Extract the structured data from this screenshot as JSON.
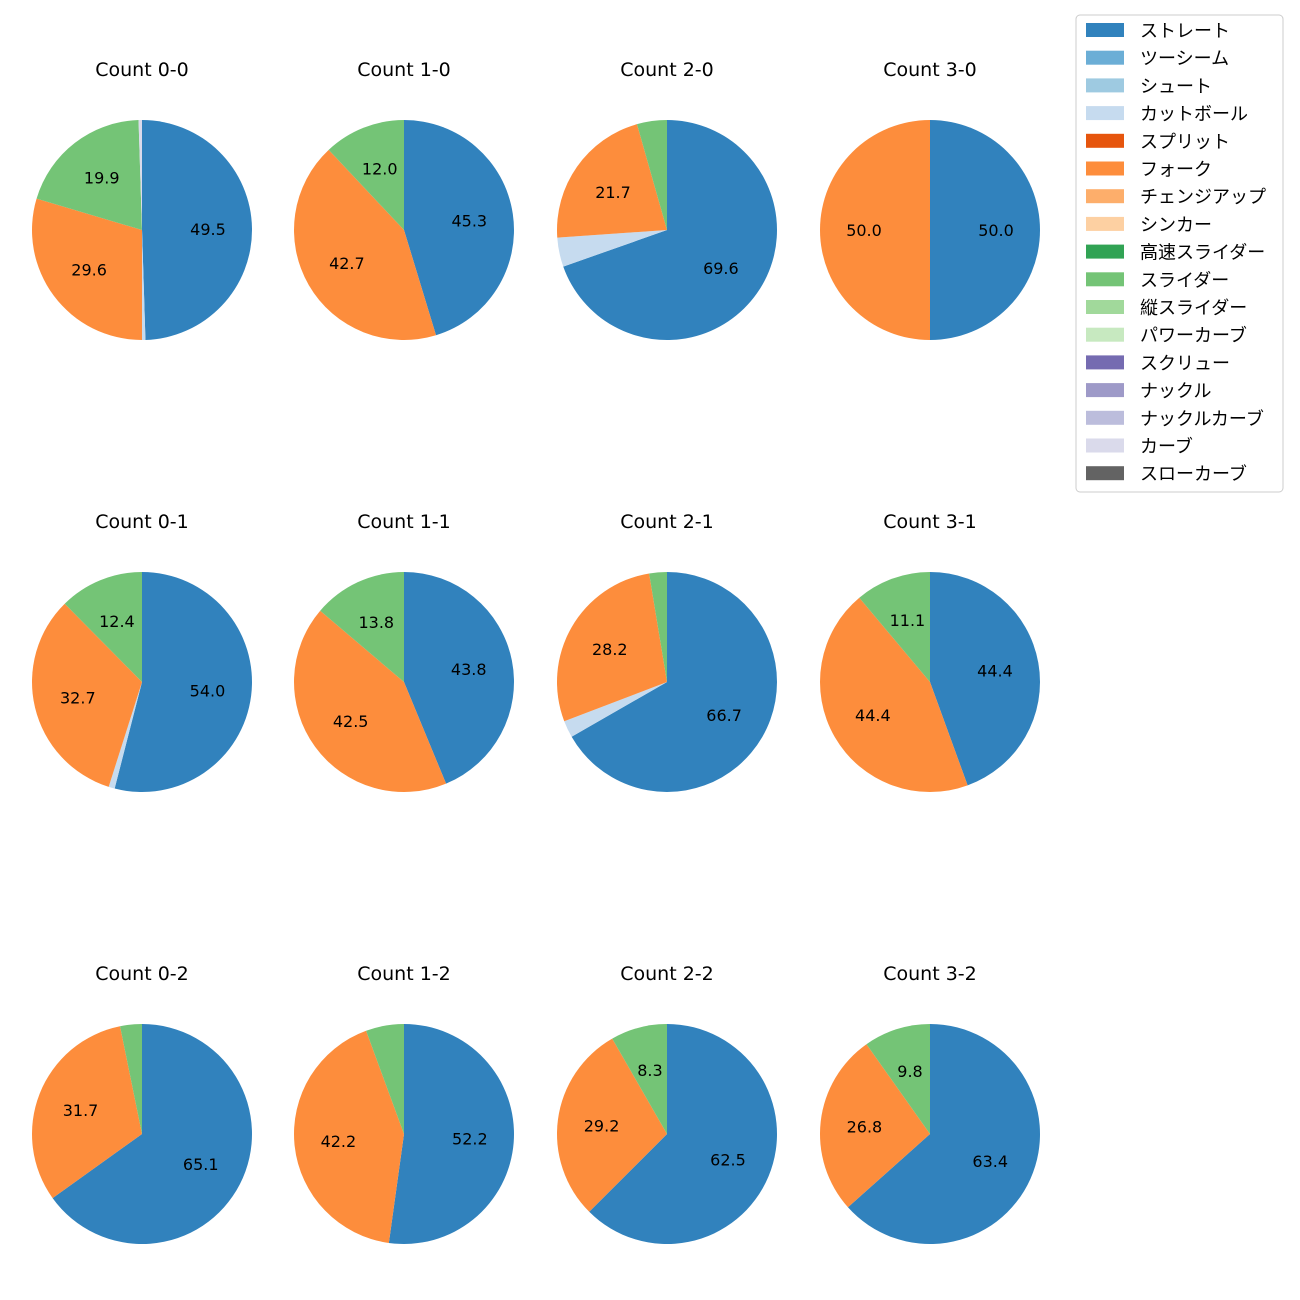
{
  "legend": [
    {
      "label": "ストレート",
      "color": "#3182bd"
    },
    {
      "label": "ツーシーム",
      "color": "#6baed6"
    },
    {
      "label": "シュート",
      "color": "#9ecae1"
    },
    {
      "label": "カットボール",
      "color": "#c6dbef"
    },
    {
      "label": "スプリット",
      "color": "#e6550d"
    },
    {
      "label": "フォーク",
      "color": "#fd8d3c"
    },
    {
      "label": "チェンジアップ",
      "color": "#fdae6b"
    },
    {
      "label": "シンカー",
      "color": "#fdd0a2"
    },
    {
      "label": "高速スライダー",
      "color": "#31a354"
    },
    {
      "label": "スライダー",
      "color": "#74c476"
    },
    {
      "label": "縦スライダー",
      "color": "#a1d99b"
    },
    {
      "label": "パワーカーブ",
      "color": "#c7e9c0"
    },
    {
      "label": "スクリュー",
      "color": "#756bb1"
    },
    {
      "label": "ナックル",
      "color": "#9e9ac8"
    },
    {
      "label": "ナックルカーブ",
      "color": "#bcbddc"
    },
    {
      "label": "カーブ",
      "color": "#dadaeb"
    },
    {
      "label": "スローカーブ",
      "color": "#636363"
    }
  ],
  "chart_data": [
    {
      "type": "pie",
      "title": "Count 0-0",
      "slices": [
        {
          "name": "ストレート",
          "value": 49.5,
          "label": "49.5"
        },
        {
          "name": "カットボール",
          "value": 0.5,
          "label": ""
        },
        {
          "name": "フォーク",
          "value": 29.6,
          "label": "29.6"
        },
        {
          "name": "スライダー",
          "value": 19.9,
          "label": "19.9"
        },
        {
          "name": "カーブ",
          "value": 0.5,
          "label": ""
        }
      ]
    },
    {
      "type": "pie",
      "title": "Count 1-0",
      "slices": [
        {
          "name": "ストレート",
          "value": 45.3,
          "label": "45.3"
        },
        {
          "name": "フォーク",
          "value": 42.7,
          "label": "42.7"
        },
        {
          "name": "スライダー",
          "value": 12.0,
          "label": "12.0"
        }
      ]
    },
    {
      "type": "pie",
      "title": "Count 2-0",
      "slices": [
        {
          "name": "ストレート",
          "value": 69.6,
          "label": "69.6"
        },
        {
          "name": "カットボール",
          "value": 4.3,
          "label": ""
        },
        {
          "name": "フォーク",
          "value": 21.7,
          "label": "21.7"
        },
        {
          "name": "スライダー",
          "value": 4.4,
          "label": ""
        }
      ]
    },
    {
      "type": "pie",
      "title": "Count 3-0",
      "slices": [
        {
          "name": "ストレート",
          "value": 50.0,
          "label": "50.0"
        },
        {
          "name": "フォーク",
          "value": 50.0,
          "label": "50.0"
        }
      ]
    },
    {
      "type": "pie",
      "title": "Count 0-1",
      "slices": [
        {
          "name": "ストレート",
          "value": 54.0,
          "label": "54.0"
        },
        {
          "name": "カットボール",
          "value": 0.9,
          "label": ""
        },
        {
          "name": "フォーク",
          "value": 32.7,
          "label": "32.7"
        },
        {
          "name": "スライダー",
          "value": 12.4,
          "label": "12.4"
        }
      ]
    },
    {
      "type": "pie",
      "title": "Count 1-1",
      "slices": [
        {
          "name": "ストレート",
          "value": 43.8,
          "label": "43.8"
        },
        {
          "name": "フォーク",
          "value": 42.5,
          "label": "42.5"
        },
        {
          "name": "スライダー",
          "value": 13.8,
          "label": "13.8"
        }
      ]
    },
    {
      "type": "pie",
      "title": "Count 2-1",
      "slices": [
        {
          "name": "ストレート",
          "value": 66.7,
          "label": "66.7"
        },
        {
          "name": "カットボール",
          "value": 2.5,
          "label": ""
        },
        {
          "name": "フォーク",
          "value": 28.2,
          "label": "28.2"
        },
        {
          "name": "スライダー",
          "value": 2.6,
          "label": ""
        }
      ]
    },
    {
      "type": "pie",
      "title": "Count 3-1",
      "slices": [
        {
          "name": "ストレート",
          "value": 44.4,
          "label": "44.4"
        },
        {
          "name": "フォーク",
          "value": 44.4,
          "label": "44.4"
        },
        {
          "name": "スライダー",
          "value": 11.1,
          "label": "11.1"
        }
      ]
    },
    {
      "type": "pie",
      "title": "Count 0-2",
      "slices": [
        {
          "name": "ストレート",
          "value": 65.1,
          "label": "65.1"
        },
        {
          "name": "フォーク",
          "value": 31.7,
          "label": "31.7"
        },
        {
          "name": "スライダー",
          "value": 3.2,
          "label": ""
        }
      ]
    },
    {
      "type": "pie",
      "title": "Count 1-2",
      "slices": [
        {
          "name": "ストレート",
          "value": 52.2,
          "label": "52.2"
        },
        {
          "name": "フォーク",
          "value": 42.2,
          "label": "42.2"
        },
        {
          "name": "スライダー",
          "value": 5.6,
          "label": ""
        }
      ]
    },
    {
      "type": "pie",
      "title": "Count 2-2",
      "slices": [
        {
          "name": "ストレート",
          "value": 62.5,
          "label": "62.5"
        },
        {
          "name": "フォーク",
          "value": 29.2,
          "label": "29.2"
        },
        {
          "name": "スライダー",
          "value": 8.3,
          "label": "8.3"
        }
      ]
    },
    {
      "type": "pie",
      "title": "Count 3-2",
      "slices": [
        {
          "name": "ストレート",
          "value": 63.4,
          "label": "63.4"
        },
        {
          "name": "フォーク",
          "value": 26.8,
          "label": "26.8"
        },
        {
          "name": "スライダー",
          "value": 9.8,
          "label": "9.8"
        }
      ]
    }
  ]
}
